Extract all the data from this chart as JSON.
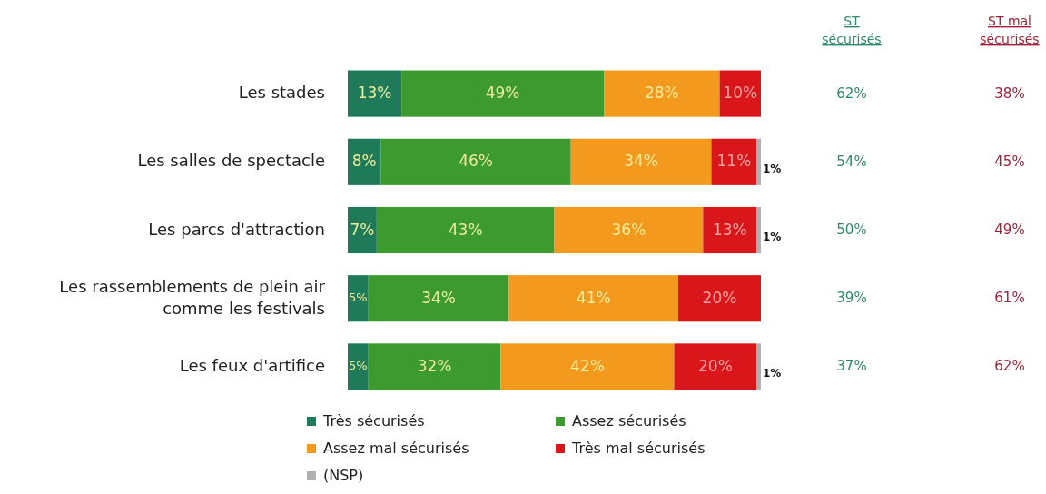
{
  "chart_data": {
    "type": "bar",
    "orientation": "horizontal",
    "stacked": true,
    "categories": [
      "Les stades",
      "Les salles de spectacle",
      "Les parcs d'attraction",
      "Les rassemblements de plein air comme les festivals",
      "Les feux d'artifice"
    ],
    "series": [
      {
        "name": "Très sécurisés",
        "color": "#1f7a5a",
        "values": [
          13,
          8,
          7,
          5,
          5
        ],
        "value_labels": [
          "13%",
          "8%",
          "7%",
          "5%",
          "5%"
        ]
      },
      {
        "name": "Assez sécurisés",
        "color": "#3c9a2e",
        "values": [
          49,
          46,
          43,
          34,
          32
        ],
        "value_labels": [
          "49%",
          "46%",
          "43%",
          "34%",
          "32%"
        ]
      },
      {
        "name": "Assez mal sécurisés",
        "color": "#f39a1e",
        "values": [
          28,
          34,
          36,
          41,
          42
        ],
        "value_labels": [
          "28%",
          "34%",
          "36%",
          "41%",
          "42%"
        ]
      },
      {
        "name": "Très mal sécurisés",
        "color": "#d9171b",
        "values": [
          10,
          11,
          13,
          20,
          20
        ],
        "value_labels": [
          "10%",
          "11%",
          "13%",
          "20%",
          "20%"
        ]
      },
      {
        "name": "(NSP)",
        "color": "#b0b0b0",
        "values": [
          0,
          1,
          1,
          0,
          1
        ],
        "value_labels": [
          null,
          "1%",
          "1%",
          null,
          "1%"
        ]
      }
    ],
    "xlim": [
      0,
      100
    ],
    "tick_labels": "y",
    "legend": "bottom",
    "annotations": [
      "ST sécurisés",
      "ST mal sécurisés",
      "62%",
      "38%",
      "54%",
      "45%",
      "50%",
      "49%",
      "39%",
      "61%",
      "37%",
      "62%"
    ]
  }
}
